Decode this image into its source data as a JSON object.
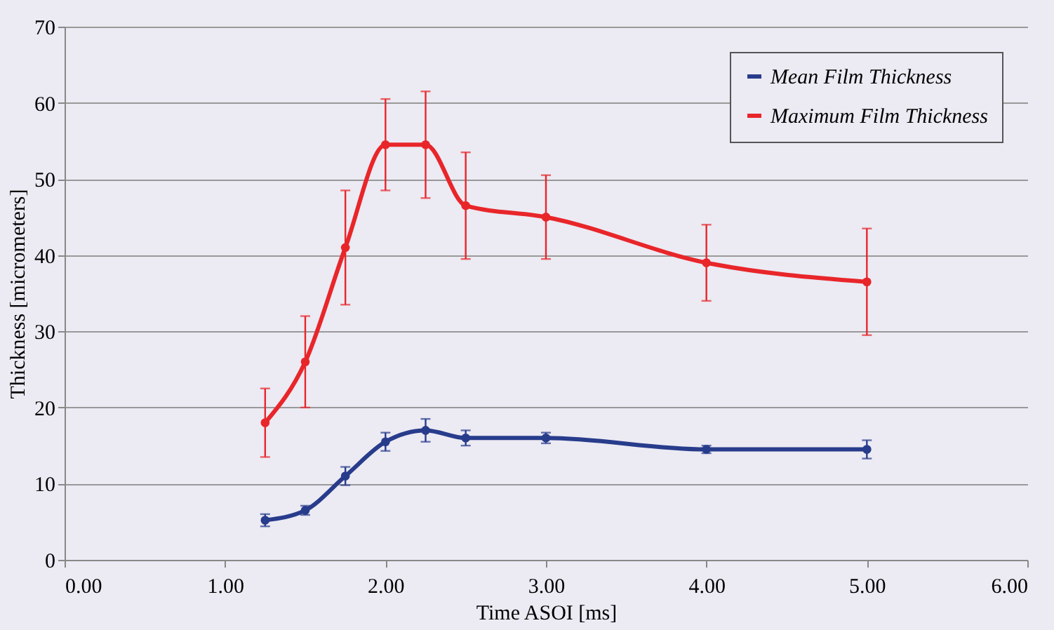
{
  "chart_data": {
    "type": "line",
    "xlabel": "Time ASOI [ms]",
    "ylabel": "Thickness [micrometers]",
    "x": [
      1.25,
      1.5,
      1.75,
      2.0,
      2.25,
      2.5,
      3.0,
      4.0,
      5.0
    ],
    "series": [
      {
        "name": "Mean Film Thickness",
        "color": "#283c8c",
        "values": [
          5.2,
          6.5,
          11,
          15.5,
          17,
          16,
          16,
          14.5,
          14.5
        ],
        "errors": [
          0.8,
          0.6,
          1.2,
          1.2,
          1.5,
          1,
          0.7,
          0.5,
          1.2
        ]
      },
      {
        "name": "Maximum Film Thickness",
        "color": "#e8262a",
        "values": [
          18,
          26,
          41,
          54.5,
          54.5,
          46.5,
          45,
          39,
          36.5
        ],
        "errors": [
          4.5,
          6,
          7.5,
          6,
          7,
          7,
          5.5,
          5,
          7
        ]
      }
    ],
    "xlim": [
      0,
      6
    ],
    "xticks": [
      {
        "value": 0,
        "label": "0.00"
      },
      {
        "value": 1,
        "label": "1.00"
      },
      {
        "value": 2,
        "label": "2.00"
      },
      {
        "value": 3,
        "label": "3.00"
      },
      {
        "value": 4,
        "label": "4.00"
      },
      {
        "value": 5,
        "label": "5.00"
      },
      {
        "value": 6,
        "label": "6.00"
      }
    ],
    "ylim": [
      0,
      70
    ],
    "yticks": [
      0,
      10,
      20,
      30,
      40,
      50,
      60,
      70
    ],
    "grid": "y",
    "legend": "top right",
    "marker": "circle",
    "line_style": "solid"
  }
}
